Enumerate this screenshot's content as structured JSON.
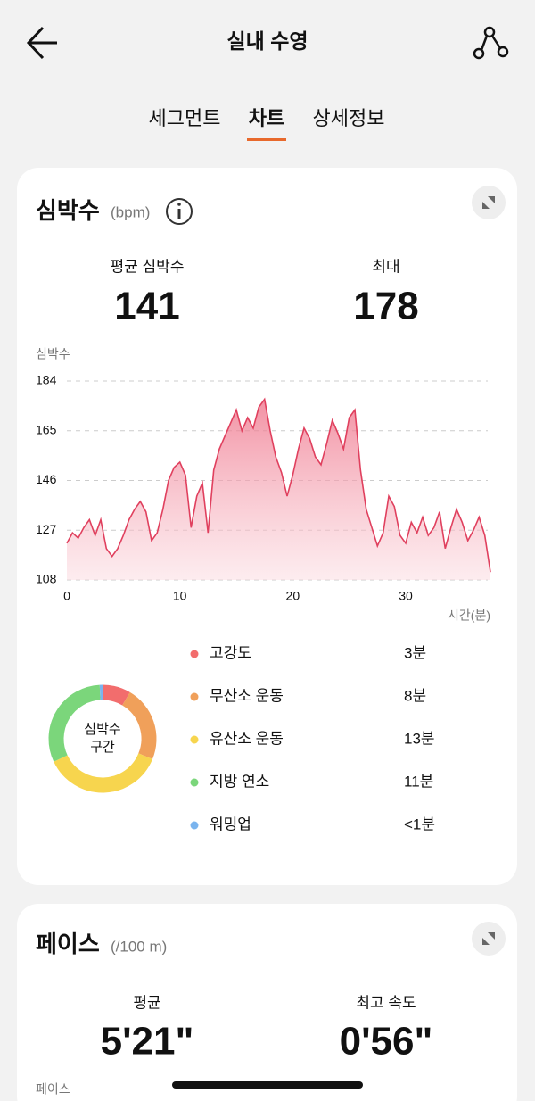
{
  "header": {
    "title": "실내 수영"
  },
  "tabs": {
    "items": [
      "세그먼트",
      "차트",
      "상세정보"
    ],
    "active": 1,
    "active_color": "#e8692c"
  },
  "heart_rate": {
    "title": "심박수",
    "unit": "(bpm)",
    "stats": [
      {
        "label": "평균 심박수",
        "value": "141"
      },
      {
        "label": "최대",
        "value": "178"
      }
    ]
  },
  "chart_data": {
    "type": "line",
    "y_label": "심박수",
    "x_label": "시간(분)",
    "color": "#e0405e",
    "x": [
      0,
      0.5,
      1,
      1.5,
      2,
      2.5,
      3,
      3.5,
      4,
      4.5,
      5,
      5.5,
      6,
      6.5,
      7,
      7.5,
      8,
      8.5,
      9,
      9.5,
      10,
      10.5,
      11,
      11.5,
      12,
      12.5,
      13,
      13.5,
      14,
      14.5,
      15,
      15.5,
      16,
      16.5,
      17,
      17.5,
      18,
      18.5,
      19,
      19.5,
      20,
      20.5,
      21,
      21.5,
      22,
      22.5,
      23,
      23.5,
      24,
      24.5,
      25,
      25.5,
      26,
      26.5,
      27,
      27.5,
      28,
      28.5,
      29,
      29.5,
      30,
      30.5,
      31,
      31.5,
      32,
      32.5,
      33,
      33.5,
      34,
      34.5,
      35,
      35.5,
      36,
      36.5,
      37,
      37.5
    ],
    "values": [
      122,
      126,
      124,
      128,
      131,
      125,
      131,
      120,
      117,
      120,
      125,
      131,
      135,
      138,
      134,
      123,
      126,
      135,
      146,
      151,
      153,
      148,
      128,
      140,
      145,
      126,
      150,
      158,
      163,
      168,
      173,
      165,
      170,
      166,
      174,
      177,
      165,
      155,
      149,
      140,
      148,
      158,
      166,
      162,
      155,
      152,
      160,
      169,
      164,
      158,
      170,
      173,
      150,
      135,
      128,
      121,
      126,
      140,
      136,
      125,
      122,
      130,
      126,
      132,
      125,
      128,
      134,
      120,
      128,
      135,
      130,
      123,
      127,
      132,
      125,
      111
    ],
    "xlim": [
      0,
      37.5
    ],
    "xticks": [
      0,
      10,
      20,
      30
    ],
    "ylim": [
      108,
      184
    ],
    "yticks": [
      108,
      127,
      146,
      165,
      184
    ],
    "grid": true
  },
  "zones": {
    "center_label": [
      "심박수",
      "구간"
    ],
    "items": [
      {
        "name": "고강도",
        "value": 3,
        "value_label": "3분",
        "color": "#f26d6d"
      },
      {
        "name": "무산소 운동",
        "value": 8,
        "value_label": "8분",
        "color": "#f0a05a"
      },
      {
        "name": "유산소 운동",
        "value": 13,
        "value_label": "13분",
        "color": "#f7d54e"
      },
      {
        "name": "지방 연소",
        "value": 11,
        "value_label": "11분",
        "color": "#7bd67b"
      },
      {
        "name": "워밍업",
        "value": 0.3,
        "value_label": "<1분",
        "color": "#7ab4ee"
      }
    ]
  },
  "pace": {
    "title": "페이스",
    "unit": "(/100 m)",
    "stats": [
      {
        "label": "평균",
        "value": "5'21\""
      },
      {
        "label": "최고 속도",
        "value": "0'56\""
      }
    ],
    "chart_label": "페이스"
  }
}
